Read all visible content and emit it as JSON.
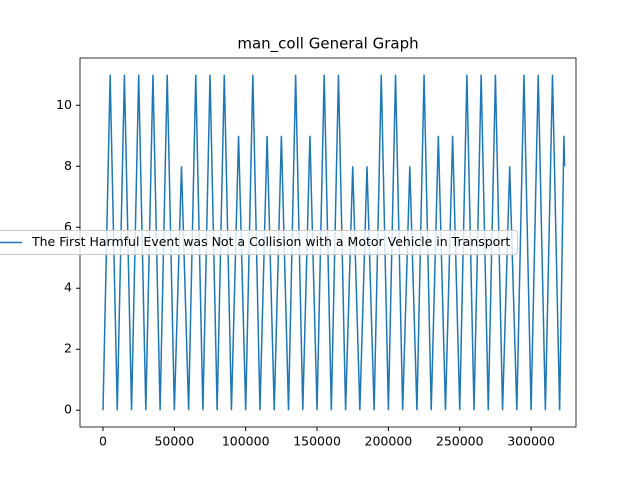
{
  "chart_data": {
    "type": "line",
    "title": "man_coll General Graph",
    "x": [
      0,
      5000,
      10000,
      15000,
      20000,
      25000,
      30000,
      35000,
      40000,
      45000,
      50000,
      55000,
      60000,
      65000,
      70000,
      75000,
      80000,
      85000,
      90000,
      95000,
      100000,
      105000,
      110000,
      115000,
      120000,
      125000,
      130000,
      135000,
      140000,
      145000,
      150000,
      155000,
      160000,
      165000,
      170000,
      175000,
      180000,
      185000,
      190000,
      195000,
      200000,
      205000,
      210000,
      215000,
      220000,
      225000,
      230000,
      235000,
      240000,
      245000,
      250000,
      255000,
      260000,
      265000,
      270000,
      275000,
      280000,
      285000,
      290000,
      295000,
      300000,
      305000,
      310000,
      315000,
      320000,
      323000,
      323500
    ],
    "series": [
      {
        "name": "The First Harmful Event was Not a Collision with a Motor Vehicle in Transport",
        "color": "#1f77b4",
        "values": [
          0,
          11,
          0,
          11,
          0,
          11,
          0,
          11,
          0,
          11,
          0,
          8,
          0,
          11,
          0,
          11,
          0,
          11,
          0,
          9,
          0,
          11,
          0,
          9,
          0,
          9,
          0,
          11,
          0,
          9,
          0,
          11,
          0,
          11,
          0,
          8,
          0,
          8,
          0,
          11,
          0,
          11,
          0,
          8,
          0,
          11,
          0,
          9,
          0,
          9,
          0,
          11,
          0,
          11,
          0,
          11,
          0,
          8,
          0,
          11,
          0,
          11,
          0,
          11,
          0,
          9,
          8
        ]
      }
    ],
    "xlim": [
      -16119,
      331470
    ],
    "ylim": [
      -0.55,
      11.55
    ],
    "xticks": [
      0,
      50000,
      100000,
      150000,
      200000,
      250000,
      300000
    ],
    "yticks": [
      0,
      2,
      4,
      6,
      8,
      10
    ],
    "legend": "center left"
  }
}
